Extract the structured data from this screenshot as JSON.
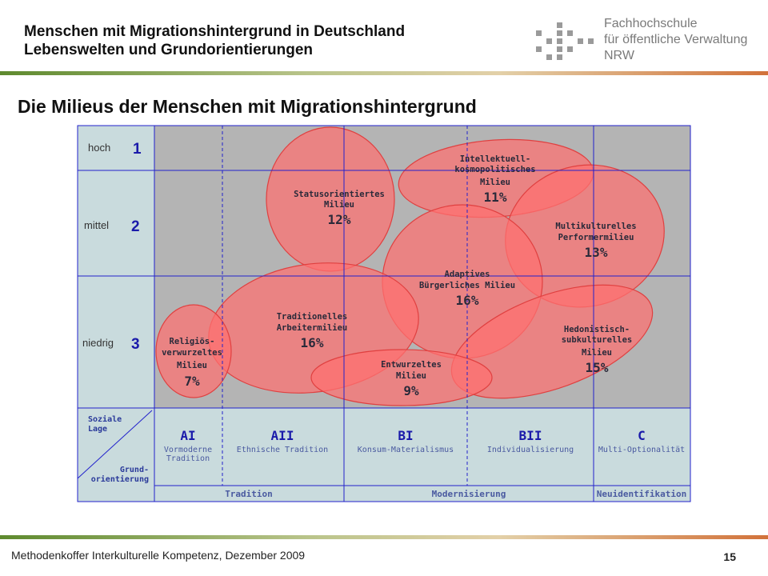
{
  "header": {
    "title_line1": "Menschen mit Migrationshintergrund in Deutschland",
    "title_line2": "Lebenswelten und Grundorientierungen",
    "logo_line1": "Fachhochschule",
    "logo_line2": "für öffentliche Verwaltung",
    "logo_line3": "NRW"
  },
  "slide_title": "Die Milieus der Menschen mit Migrationshintergrund",
  "diagram": {
    "levels": [
      {
        "word": "hoch",
        "num": "1"
      },
      {
        "word": "mittel",
        "num": "2"
      },
      {
        "word": "niedrig",
        "num": "3"
      }
    ],
    "corner_top": [
      "Soziale",
      "Lage"
    ],
    "corner_bottom": [
      "Grund-",
      "orientierung"
    ],
    "columns": [
      {
        "code": "AI",
        "desc": [
          "Vormoderne",
          "Tradition"
        ]
      },
      {
        "code": "AII",
        "desc": [
          "Ethnische Tradition"
        ]
      },
      {
        "code": "BI",
        "desc": [
          "Konsum-Materialismus"
        ]
      },
      {
        "code": "BII",
        "desc": [
          "Individualisierung"
        ]
      },
      {
        "code": "C",
        "desc": [
          "Multi-Optionalität"
        ]
      }
    ],
    "groups": [
      "Tradition",
      "Modernisierung",
      "Neuidentifikation"
    ],
    "milieus": [
      {
        "lines": [
          "Statusorientiertes",
          "Milieu"
        ],
        "pct": "12%"
      },
      {
        "lines": [
          "Intellektuell-",
          "kosmopolitisches",
          "Milieu"
        ],
        "pct": "11%"
      },
      {
        "lines": [
          "Multikulturelles",
          "Performermilieu"
        ],
        "pct": "13%"
      },
      {
        "lines": [
          "Adaptives",
          "Bürgerliches Milieu"
        ],
        "pct": "16%"
      },
      {
        "lines": [
          "Traditionelles",
          "Arbeitermilieu"
        ],
        "pct": "16%"
      },
      {
        "lines": [
          "Religiös-",
          "verwurzeltes",
          "Milieu"
        ],
        "pct": "7%"
      },
      {
        "lines": [
          "Hedonistisch-",
          "subkulturelles",
          "Milieu"
        ],
        "pct": "15%"
      },
      {
        "lines": [
          "Entwurzeltes",
          "Milieu"
        ],
        "pct": "9%"
      }
    ],
    "colors": {
      "gray": "#b4b4b4",
      "panel": "#c9dbdd",
      "grid": "#2222cc",
      "blob": "#ff7070",
      "blob_stroke": "#e04040",
      "text_blue": "#1a1aaa"
    }
  },
  "footer": {
    "text": "Methodenkoffer Interkulturelle Kompetenz, Dezember 2009",
    "page": "15"
  }
}
